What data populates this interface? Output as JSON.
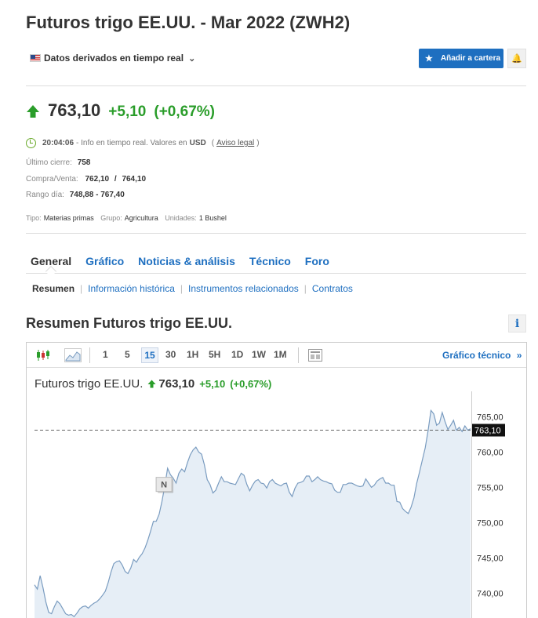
{
  "header": {
    "title": "Futuros trigo EE.UU. - Mar 2022 (ZWH2)",
    "derived_label": "Datos derivados en tiempo real",
    "add_portfolio": "Añadir a cartera"
  },
  "quote": {
    "price": "763,10",
    "change": "+5,10",
    "change_pct": "(+0,67%)",
    "time": "20:04:06",
    "info_text": "- Info en tiempo real.  Valores en",
    "currency": "USD",
    "legal": "Aviso legal",
    "last_close_label": "Último cierre:",
    "last_close": "758",
    "bid_ask_label": "Compra/Venta:",
    "bid": "762,10",
    "ask": "764,10",
    "range_label": "Rango día:",
    "range": "748,88 - 767,40"
  },
  "meta": {
    "type_label": "Tipo:",
    "type": "Materias primas",
    "group_label": "Grupo:",
    "group": "Agricultura",
    "units_label": "Unidades:",
    "units": "1 Bushel"
  },
  "tabs": [
    "General",
    "Gráfico",
    "Noticias & análisis",
    "Técnico",
    "Foro"
  ],
  "subtabs": [
    "Resumen",
    "Información histórica",
    "Instrumentos relacionados",
    "Contratos"
  ],
  "section": {
    "title": "Resumen Futuros trigo EE.UU."
  },
  "chart": {
    "intervals": [
      "1",
      "5",
      "15",
      "30",
      "1H",
      "5H",
      "1D",
      "1W",
      "1M"
    ],
    "selected_interval": "15",
    "technical_link": "Gráfico técnico",
    "name": "Futuros trigo EE.UU.",
    "price": "763,10",
    "change": "+5,10",
    "change_pct": "(+0,67%)",
    "news_marker": "N",
    "current_label": "763,10",
    "colors": {
      "up": "#2a9d2a",
      "link": "#1e6fc0",
      "area": "#e6eef6",
      "line": "#7a9cc0"
    }
  },
  "chart_data": {
    "type": "area",
    "title": "Futuros trigo EE.UU.",
    "yticks": [
      "765,00",
      "760,00",
      "755,00",
      "750,00",
      "745,00",
      "740,00"
    ],
    "ylim": [
      735.5,
      768.6
    ],
    "current": 763.1,
    "values": [
      741.2,
      740.6,
      742.5,
      740.8,
      738.8,
      737.3,
      737.1,
      738.1,
      738.9,
      738.5,
      737.8,
      737.1,
      736.9,
      737.0,
      736.7,
      737.2,
      737.8,
      738.1,
      738.2,
      737.9,
      738.3,
      738.6,
      738.8,
      739.2,
      739.7,
      740.3,
      741.5,
      743.0,
      744.2,
      744.5,
      744.6,
      744.0,
      743.1,
      742.8,
      743.6,
      744.8,
      744.4,
      745.1,
      745.6,
      746.4,
      747.5,
      748.8,
      750.2,
      750.2,
      751.2,
      753.0,
      755.2,
      757.7,
      756.8,
      756.3,
      755.6,
      757.0,
      757.6,
      757.2,
      758.5,
      759.6,
      760.3,
      760.7,
      760.0,
      759.7,
      758.2,
      756.1,
      755.4,
      754.2,
      754.6,
      755.6,
      756.5,
      755.8,
      755.8,
      755.6,
      755.5,
      755.4,
      756.2,
      757.0,
      756.7,
      755.4,
      754.5,
      755.3,
      755.9,
      756.1,
      755.6,
      755.5,
      754.9,
      755.8,
      756.1,
      755.6,
      755.4,
      755.2,
      755.5,
      755.6,
      754.3,
      753.7,
      754.9,
      755.6,
      755.7,
      755.9,
      756.6,
      756.6,
      755.8,
      756.1,
      756.5,
      756.1,
      755.9,
      755.8,
      755.6,
      755.5,
      754.6,
      754.3,
      754.3,
      755.4,
      755.4,
      755.6,
      755.6,
      755.4,
      755.2,
      755.1,
      755.2,
      756.2,
      755.6,
      755.0,
      755.3,
      755.9,
      756.2,
      756.4,
      755.6,
      755.6,
      755.3,
      755.3,
      753.0,
      752.9,
      752.0,
      751.6,
      751.3,
      752.2,
      753.5,
      755.6,
      757.2,
      758.9,
      760.6,
      763.0,
      765.9,
      765.4,
      763.8,
      764.1,
      765.6,
      764.3,
      763.2,
      763.8,
      764.5,
      763.1,
      763.5,
      762.9,
      763.7,
      763.1,
      763.3
    ]
  }
}
